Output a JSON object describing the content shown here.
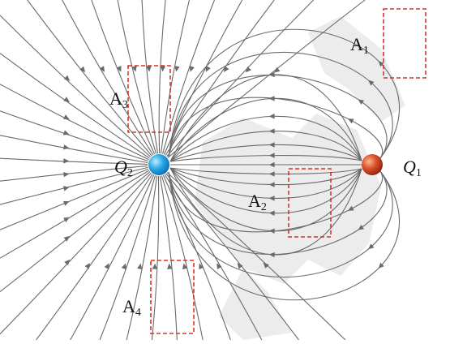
{
  "colors": {
    "background": "#ffffff",
    "watermark": "#e9e9e9",
    "field_line": "#6a6a6a",
    "region_box": "#d9302a",
    "charge_q2": "#2aa8e8",
    "charge_q1": "#d8502a"
  },
  "charges": {
    "q2": {
      "letter": "Q",
      "sub": "2"
    },
    "q1": {
      "letter": "Q",
      "sub": "1"
    }
  },
  "regions": {
    "a1": {
      "letter": "A",
      "sub": "1"
    },
    "a2": {
      "letter": "A",
      "sub": "2"
    },
    "a3": {
      "letter": "A",
      "sub": "3"
    },
    "a4": {
      "letter": "A",
      "sub": "4"
    }
  }
}
